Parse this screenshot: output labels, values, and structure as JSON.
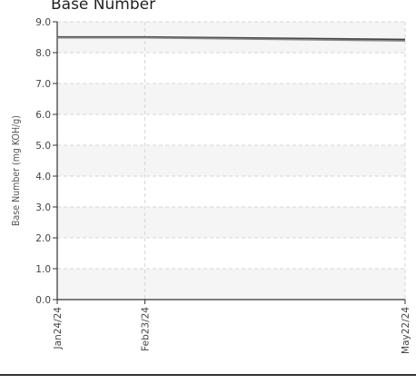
{
  "chart_data": {
    "type": "line",
    "title": "Base Number",
    "xlabel": "",
    "ylabel": "Base Number (mg KOH/g)",
    "categories": [
      "Jan24/24",
      "Feb23/24",
      "May22/24"
    ],
    "x": [
      "2024-01-24",
      "2024-02-23",
      "2024-05-22"
    ],
    "ylim": [
      0,
      9
    ],
    "yticks": [
      "0.0",
      "1.0",
      "2.0",
      "3.0",
      "4.0",
      "5.0",
      "6.0",
      "7.0",
      "8.0",
      "9.0"
    ],
    "grid": true,
    "series": [
      {
        "values": [
          8.5,
          8.5,
          8.42
        ],
        "color": "#444444"
      },
      {
        "values": [
          8.48,
          8.48,
          8.38
        ],
        "color": "#888888"
      }
    ]
  }
}
